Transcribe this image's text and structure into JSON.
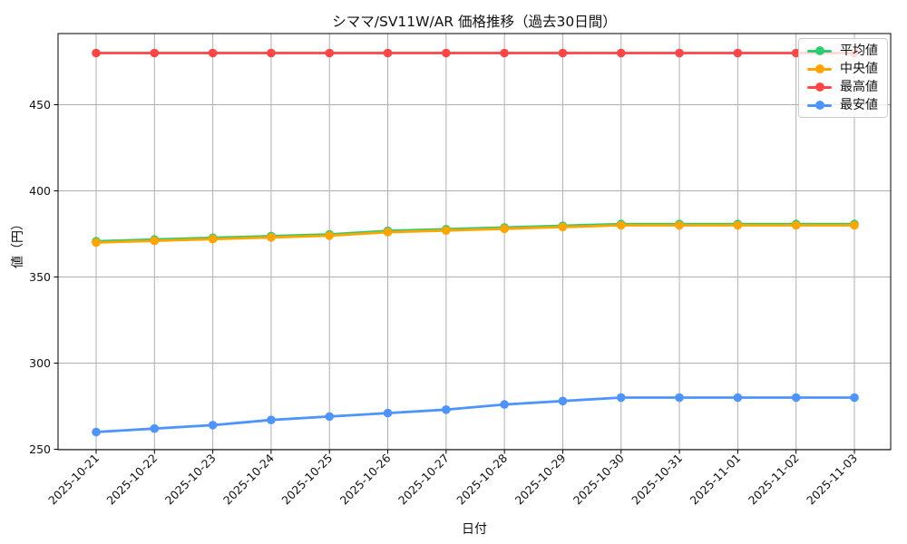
{
  "chart_data": {
    "type": "line",
    "title": "シママ/SV11W/AR 価格推移（過去30日間）",
    "xlabel": "日付",
    "ylabel": "値（円）",
    "x": [
      "2025-10-21",
      "2025-10-22",
      "2025-10-23",
      "2025-10-24",
      "2025-10-25",
      "2025-10-26",
      "2025-10-27",
      "2025-10-28",
      "2025-10-29",
      "2025-10-30",
      "2025-10-31",
      "2025-11-01",
      "2025-11-02",
      "2025-11-03"
    ],
    "series": [
      {
        "key": "average",
        "name": "平均値",
        "color": "#2ecc71",
        "values": [
          370,
          371,
          372,
          373,
          374,
          376,
          377,
          378,
          379,
          380,
          380,
          380,
          380,
          380
        ]
      },
      {
        "key": "median",
        "name": "中央値",
        "color": "#ffa500",
        "values": [
          370,
          371,
          372,
          373,
          374,
          376,
          377,
          378,
          379,
          380,
          380,
          380,
          380,
          380
        ]
      },
      {
        "key": "max",
        "name": "最高値",
        "color": "#ff4545",
        "values": [
          480,
          480,
          480,
          480,
          480,
          480,
          480,
          480,
          480,
          480,
          480,
          480,
          480,
          480
        ]
      },
      {
        "key": "min",
        "name": "最安値",
        "color": "#4d94ff",
        "values": [
          260,
          262,
          264,
          267,
          269,
          271,
          273,
          276,
          278,
          280,
          280,
          280,
          280,
          280
        ]
      }
    ],
    "yticks": [
      250,
      300,
      350,
      400,
      450
    ],
    "ylim": [
      249,
      491
    ],
    "grid": true,
    "legend_position": "upper right",
    "average_overlaps_median": true,
    "grid_color": "#b0b0b0"
  }
}
